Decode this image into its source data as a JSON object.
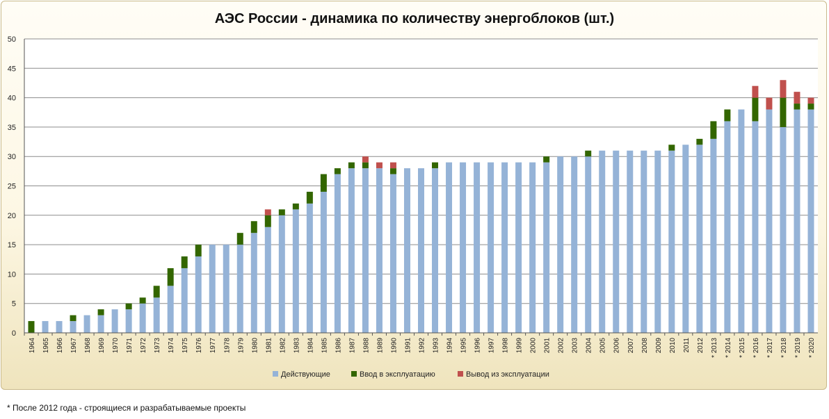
{
  "chart_data": {
    "type": "bar",
    "stacked": true,
    "title": "АЭС России - динамика по количеству энергоблоков (шт.)",
    "xlabel": "",
    "ylabel": "",
    "ylim": [
      0,
      50
    ],
    "yticks": [
      0,
      5,
      10,
      15,
      20,
      25,
      30,
      35,
      40,
      45,
      50
    ],
    "grid": true,
    "legend_position": "bottom",
    "categories": [
      "1964",
      "1965",
      "1966",
      "1967",
      "1968",
      "1969",
      "1970",
      "1971",
      "1972",
      "1973",
      "1974",
      "1975",
      "1976",
      "1977",
      "1978",
      "1979",
      "1980",
      "1981",
      "1982",
      "1983",
      "1984",
      "1985",
      "1986",
      "1987",
      "1988",
      "1989",
      "1990",
      "1991",
      "1992",
      "1993",
      "1994",
      "1995",
      "1996",
      "1997",
      "1998",
      "1999",
      "2000",
      "2001",
      "2002",
      "2003",
      "2004",
      "2005",
      "2006",
      "2007",
      "2008",
      "2009",
      "2010",
      "2011",
      "2012",
      "* 2013",
      "* 2014",
      "* 2015",
      "* 2016",
      "* 2017",
      "* 2018",
      "* 2019",
      "* 2020"
    ],
    "series": [
      {
        "name": "Действующие",
        "color": "#95b3d7",
        "values": [
          0,
          2,
          2,
          2,
          3,
          3,
          4,
          4,
          5,
          6,
          8,
          11,
          13,
          15,
          15,
          15,
          17,
          18,
          20,
          21,
          22,
          24,
          27,
          28,
          28,
          28,
          27,
          28,
          28,
          28,
          29,
          29,
          29,
          29,
          29,
          29,
          29,
          29,
          30,
          30,
          30,
          31,
          31,
          31,
          31,
          31,
          31,
          32,
          32,
          33,
          36,
          38,
          36,
          38,
          35,
          38,
          38
        ]
      },
      {
        "name": "Ввод в эксплуатацию",
        "color": "#336600",
        "values": [
          2,
          0,
          0,
          1,
          0,
          1,
          0,
          1,
          1,
          2,
          3,
          2,
          2,
          0,
          0,
          2,
          2,
          2,
          1,
          1,
          2,
          3,
          1,
          1,
          1,
          0,
          1,
          0,
          0,
          1,
          0,
          0,
          0,
          0,
          0,
          0,
          0,
          1,
          0,
          0,
          1,
          0,
          0,
          0,
          0,
          0,
          1,
          0,
          1,
          3,
          2,
          0,
          4,
          0,
          5,
          1,
          1
        ]
      },
      {
        "name": "Вывод из эксплуатации",
        "color": "#c0504d",
        "values": [
          0,
          0,
          0,
          0,
          0,
          0,
          0,
          0,
          0,
          0,
          0,
          0,
          0,
          0,
          0,
          0,
          0,
          1,
          0,
          0,
          0,
          0,
          0,
          0,
          1,
          1,
          1,
          0,
          0,
          0,
          0,
          0,
          0,
          0,
          0,
          0,
          0,
          0,
          0,
          0,
          0,
          0,
          0,
          0,
          0,
          0,
          0,
          0,
          0,
          0,
          0,
          0,
          2,
          2,
          3,
          2,
          1
        ]
      }
    ]
  },
  "footnote": "* После 2012 года - строящиеся и разрабатываемые проекты"
}
